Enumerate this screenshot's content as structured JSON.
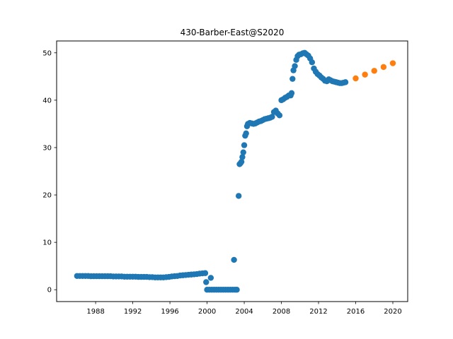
{
  "chart_data": {
    "type": "scatter",
    "title": "430-Barber-East@S2020",
    "xlabel": "",
    "ylabel": "",
    "xlim": [
      1983.8,
      2021.6
    ],
    "ylim": [
      -2.5,
      52.5
    ],
    "x_ticks": [
      1988,
      1992,
      1996,
      2000,
      2004,
      2008,
      2012,
      2016,
      2020
    ],
    "x_tick_labels": [
      "1988",
      "1992",
      "1996",
      "2000",
      "2004",
      "2008",
      "2012",
      "2016",
      "2020"
    ],
    "y_ticks": [
      0,
      10,
      20,
      30,
      40,
      50
    ],
    "y_tick_labels": [
      "0",
      "10",
      "20",
      "30",
      "40",
      "50"
    ],
    "grid": false,
    "series": [
      {
        "color": "#1f77b4",
        "points": [
          [
            1986.0,
            2.9
          ],
          [
            1986.3,
            2.9
          ],
          [
            1986.6,
            2.9
          ],
          [
            1986.9,
            2.9
          ],
          [
            1987.2,
            2.9
          ],
          [
            1987.5,
            2.85
          ],
          [
            1987.8,
            2.85
          ],
          [
            1988.1,
            2.85
          ],
          [
            1988.4,
            2.85
          ],
          [
            1988.7,
            2.85
          ],
          [
            1989.0,
            2.85
          ],
          [
            1989.3,
            2.85
          ],
          [
            1989.6,
            2.85
          ],
          [
            1989.9,
            2.8
          ],
          [
            1990.2,
            2.8
          ],
          [
            1990.5,
            2.8
          ],
          [
            1990.8,
            2.8
          ],
          [
            1991.1,
            2.75
          ],
          [
            1991.4,
            2.75
          ],
          [
            1991.7,
            2.75
          ],
          [
            1992.0,
            2.75
          ],
          [
            1992.3,
            2.75
          ],
          [
            1992.6,
            2.7
          ],
          [
            1992.9,
            2.7
          ],
          [
            1993.2,
            2.7
          ],
          [
            1993.5,
            2.7
          ],
          [
            1993.8,
            2.65
          ],
          [
            1994.1,
            2.65
          ],
          [
            1994.4,
            2.6
          ],
          [
            1994.7,
            2.6
          ],
          [
            1995.0,
            2.6
          ],
          [
            1995.3,
            2.6
          ],
          [
            1995.6,
            2.65
          ],
          [
            1995.9,
            2.7
          ],
          [
            1996.2,
            2.8
          ],
          [
            1996.5,
            2.85
          ],
          [
            1996.8,
            2.9
          ],
          [
            1997.1,
            3.0
          ],
          [
            1997.4,
            3.05
          ],
          [
            1997.7,
            3.1
          ],
          [
            1998.0,
            3.15
          ],
          [
            1998.3,
            3.2
          ],
          [
            1998.6,
            3.25
          ],
          [
            1998.9,
            3.3
          ],
          [
            1999.2,
            3.4
          ],
          [
            1999.5,
            3.45
          ],
          [
            1999.8,
            3.5
          ],
          [
            1999.9,
            1.6
          ],
          [
            2000.0,
            0.0
          ],
          [
            2000.25,
            0.0
          ],
          [
            2000.5,
            0.0
          ],
          [
            2000.75,
            0.0
          ],
          [
            2001.0,
            0.0
          ],
          [
            2001.25,
            0.0
          ],
          [
            2001.5,
            0.0
          ],
          [
            2001.75,
            0.0
          ],
          [
            2002.0,
            0.0
          ],
          [
            2002.25,
            0.0
          ],
          [
            2002.5,
            0.0
          ],
          [
            2002.75,
            0.0
          ],
          [
            2003.0,
            0.0
          ],
          [
            2003.2,
            0.0
          ],
          [
            2000.4,
            2.5
          ],
          [
            2002.9,
            6.3
          ],
          [
            2003.4,
            19.8
          ],
          [
            2003.5,
            26.5
          ],
          [
            2003.6,
            26.7
          ],
          [
            2003.7,
            27.0
          ],
          [
            2003.8,
            28.0
          ],
          [
            2003.9,
            29.0
          ],
          [
            2004.0,
            30.5
          ],
          [
            2004.1,
            32.5
          ],
          [
            2004.2,
            33.0
          ],
          [
            2004.3,
            34.5
          ],
          [
            2004.4,
            35.0
          ],
          [
            2004.6,
            35.2
          ],
          [
            2004.8,
            35.1
          ],
          [
            2005.0,
            35.0
          ],
          [
            2005.2,
            35.1
          ],
          [
            2005.4,
            35.3
          ],
          [
            2005.6,
            35.5
          ],
          [
            2005.8,
            35.6
          ],
          [
            2006.0,
            35.8
          ],
          [
            2006.2,
            36.0
          ],
          [
            2006.4,
            36.1
          ],
          [
            2006.6,
            36.2
          ],
          [
            2006.8,
            36.3
          ],
          [
            2007.0,
            36.5
          ],
          [
            2007.2,
            37.5
          ],
          [
            2007.4,
            37.8
          ],
          [
            2007.6,
            37.2
          ],
          [
            2007.8,
            36.8
          ],
          [
            2008.0,
            40.0
          ],
          [
            2008.2,
            40.2
          ],
          [
            2008.4,
            40.5
          ],
          [
            2008.6,
            40.7
          ],
          [
            2008.8,
            41.0
          ],
          [
            2009.0,
            41.0
          ],
          [
            2009.1,
            41.5
          ],
          [
            2009.2,
            44.5
          ],
          [
            2009.3,
            46.3
          ],
          [
            2009.45,
            47.2
          ],
          [
            2009.6,
            48.5
          ],
          [
            2009.75,
            49.3
          ],
          [
            2009.9,
            49.6
          ],
          [
            2010.1,
            49.7
          ],
          [
            2010.3,
            49.9
          ],
          [
            2010.5,
            50.0
          ],
          [
            2010.7,
            49.7
          ],
          [
            2010.9,
            49.4
          ],
          [
            2011.1,
            48.8
          ],
          [
            2011.3,
            48.0
          ],
          [
            2011.5,
            46.7
          ],
          [
            2011.7,
            46.0
          ],
          [
            2011.9,
            45.5
          ],
          [
            2012.1,
            45.2
          ],
          [
            2012.3,
            44.8
          ],
          [
            2012.5,
            44.5
          ],
          [
            2012.7,
            44.1
          ],
          [
            2012.9,
            44.0
          ],
          [
            2013.1,
            44.4
          ],
          [
            2013.3,
            44.2
          ],
          [
            2013.5,
            44.0
          ],
          [
            2013.7,
            43.9
          ],
          [
            2013.9,
            43.8
          ],
          [
            2014.1,
            43.7
          ],
          [
            2014.3,
            43.6
          ],
          [
            2014.5,
            43.6
          ],
          [
            2014.7,
            43.7
          ],
          [
            2014.9,
            43.8
          ]
        ]
      },
      {
        "color": "#ff7f0e",
        "points": [
          [
            2016.0,
            44.6
          ],
          [
            2017.0,
            45.4
          ],
          [
            2018.0,
            46.2
          ],
          [
            2019.0,
            47.0
          ],
          [
            2020.0,
            47.8
          ]
        ]
      }
    ]
  }
}
